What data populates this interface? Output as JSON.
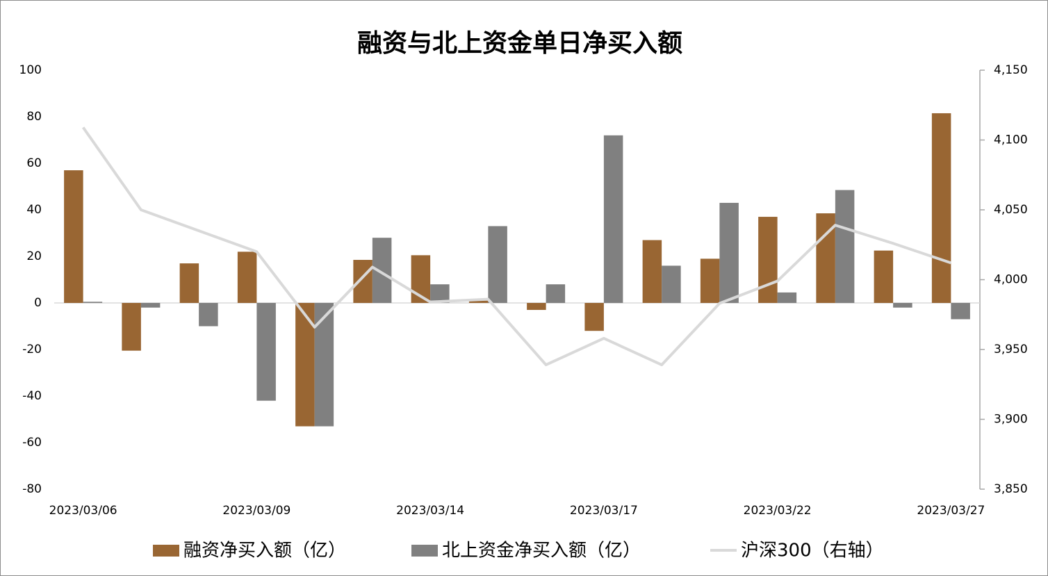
{
  "chart_data": {
    "type": "bar",
    "title": "融资与北上资金单日净买入额",
    "categories": [
      "2023/03/06",
      null,
      null,
      "2023/03/09",
      null,
      null,
      "2023/03/14",
      null,
      null,
      "2023/03/17",
      null,
      null,
      "2023/03/22",
      null,
      null,
      "2023/03/27"
    ],
    "series": [
      {
        "name": "融资净买入额（亿）",
        "color": "#996633",
        "type": "bar",
        "values": [
          57,
          -20.5,
          17,
          22,
          -53,
          18.5,
          20.5,
          1,
          -3,
          -12,
          27,
          19,
          37,
          38.5,
          22.5,
          81.5
        ]
      },
      {
        "name": "北上资金净买入额（亿）",
        "color": "#808080",
        "type": "bar",
        "values": [
          0.5,
          -2,
          -10,
          -42,
          -53,
          28,
          8,
          33,
          8,
          72,
          16,
          43,
          4.5,
          48.5,
          -2,
          -7
        ]
      },
      {
        "name": "沪深300（右轴）",
        "color": "#d9d9d9",
        "type": "line",
        "axis": "y2",
        "values": [
          4109,
          4050,
          4035,
          4020,
          3966,
          4009,
          3984,
          3986,
          3939,
          3958,
          3939,
          3983,
          3999,
          4039,
          4026,
          4012
        ]
      }
    ],
    "ylim": [
      -80,
      100
    ],
    "yticks": [
      -80,
      -60,
      -40,
      -20,
      0,
      20,
      40,
      60,
      80,
      100
    ],
    "y2lim": [
      3850,
      4150
    ],
    "y2ticks": [
      {
        "value": 3850,
        "label": "3,850"
      },
      {
        "value": 3900,
        "label": "3,900"
      },
      {
        "value": 3950,
        "label": "3,950"
      },
      {
        "value": 4000,
        "label": "4,000"
      },
      {
        "value": 4050,
        "label": "4,050"
      },
      {
        "value": 4100,
        "label": "4,100"
      },
      {
        "value": 4150,
        "label": "4,150"
      }
    ],
    "grid": false,
    "legend": "bottom"
  }
}
